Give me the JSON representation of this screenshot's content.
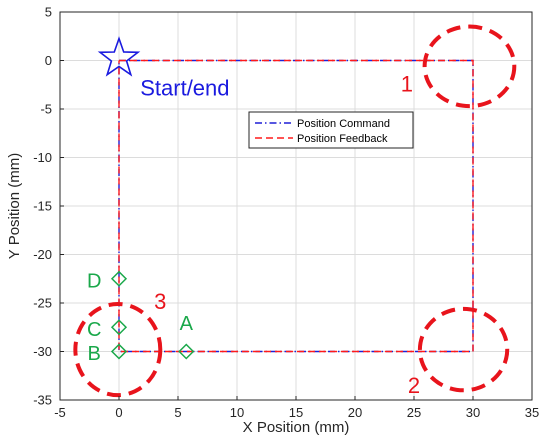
{
  "chart_data": {
    "type": "line",
    "title": "",
    "xlabel": "X Position (mm)",
    "ylabel": "Y Position (mm)",
    "xlim": [
      -5,
      35
    ],
    "ylim": [
      -35,
      5
    ],
    "x_ticks": [
      "-5",
      "0",
      "5",
      "10",
      "15",
      "20",
      "25",
      "30",
      "35"
    ],
    "y_ticks": [
      "5",
      "0",
      "-5",
      "-10",
      "-15",
      "-20",
      "-25",
      "-30",
      "-35"
    ],
    "grid": true,
    "legend_placement": "center",
    "series": [
      {
        "name": "Position Command",
        "color": "#1f1fd6",
        "style": "dash-dot",
        "x": [
          0,
          30,
          30,
          0,
          0
        ],
        "y": [
          0,
          0,
          -30,
          -30,
          0
        ]
      },
      {
        "name": "Position Feedback",
        "color": "#ff1a1a",
        "style": "dashed",
        "x": [
          0,
          30,
          30,
          0,
          0
        ],
        "y": [
          0,
          0,
          -30,
          -30,
          0
        ]
      }
    ],
    "start_marker": {
      "x": 0,
      "y": 0,
      "label": "Start/end",
      "color": "#1a1adf"
    },
    "points": [
      {
        "label": "A",
        "x": 5.7,
        "y": -30
      },
      {
        "label": "B",
        "x": 0,
        "y": -30
      },
      {
        "label": "C",
        "x": 0,
        "y": -27.5
      },
      {
        "label": "D",
        "x": 0,
        "y": -22.5
      }
    ],
    "point_color": "#1aa84a",
    "regions": [
      {
        "label": "1",
        "cx": 29.7,
        "cy": -0.6,
        "rx": 3.8,
        "ry": 4.1
      },
      {
        "label": "2",
        "cx": 29.2,
        "cy": -29.8,
        "rx": 3.7,
        "ry": 4.2
      },
      {
        "label": "3",
        "cx": -0.1,
        "cy": -29.8,
        "rx": 3.6,
        "ry": 4.7
      }
    ],
    "region_color": "#e8141c"
  }
}
